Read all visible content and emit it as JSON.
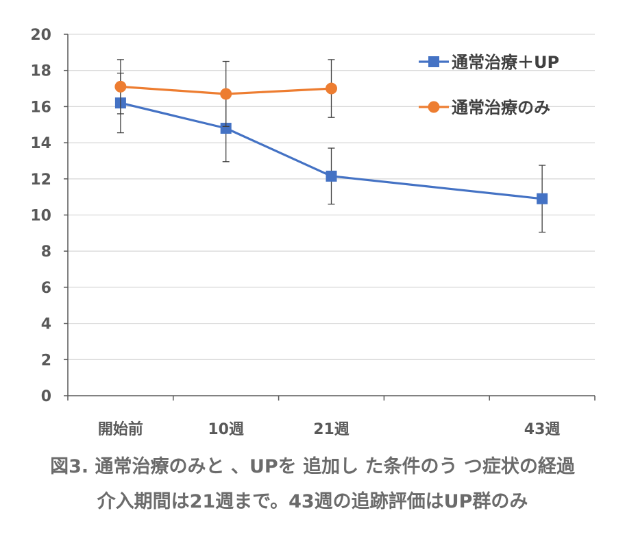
{
  "chart_data": {
    "type": "line",
    "categories": [
      "開始前",
      "10週",
      "21週",
      "",
      "43週"
    ],
    "ylim": [
      0,
      20
    ],
    "yticks": [
      0,
      2,
      4,
      6,
      8,
      10,
      12,
      14,
      16,
      18,
      20
    ],
    "grid": true,
    "legend_position": "top-right",
    "series": [
      {
        "name": "通常治療＋UP",
        "color": "#4472C4",
        "marker": "square",
        "values": [
          16.2,
          14.8,
          12.15,
          null,
          10.9
        ],
        "error": [
          1.65,
          1.85,
          1.55,
          null,
          1.85
        ]
      },
      {
        "name": "通常治療のみ",
        "color": "#ED7D31",
        "marker": "circle",
        "values": [
          17.1,
          16.7,
          17.0,
          null,
          null
        ],
        "error": [
          1.5,
          1.8,
          1.6,
          null,
          null
        ]
      }
    ]
  },
  "caption": {
    "line1": "図3. 通常治療のみと 、UPを 追加し た条件のう つ症状の経過",
    "line2": "介入期間は21週まで。43週の追跡評価はUP群のみ"
  }
}
